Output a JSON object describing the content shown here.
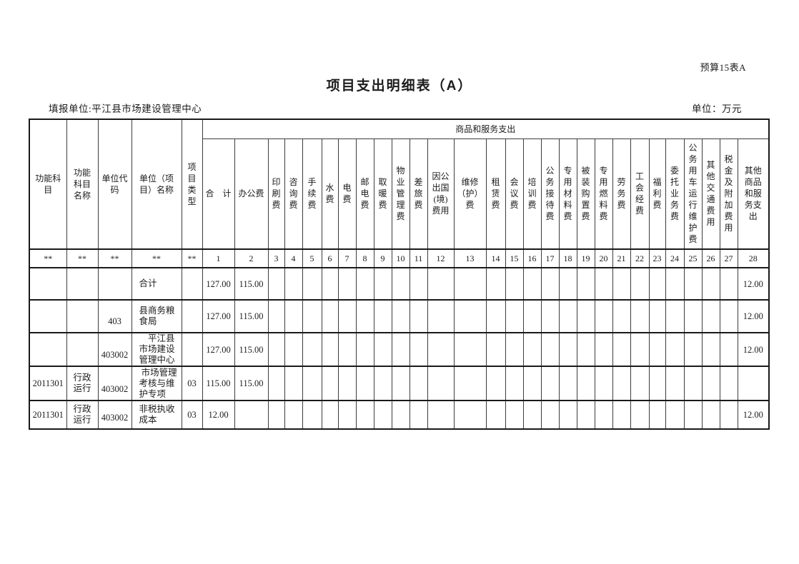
{
  "page": {
    "form_code": "预算15表A",
    "title": "项目支出明细表（A）",
    "reporting_unit": "填报单位:平江县市场建设管理中心",
    "unit_note": "单位：万元"
  },
  "table": {
    "group_header": "商品和服务支出",
    "left_headers": [
      "功能科\n目",
      "功能\n科目\n名称",
      "单位代\n码",
      "单位（项\n目）名称",
      "项\n目\n类\n型"
    ],
    "expense_headers": [
      "合　计",
      "办公费",
      "印\n刷\n费",
      "咨\n询\n费",
      "手\n续\n费",
      "水\n费",
      "电\n费",
      "邮\n电\n费",
      "取\n暖\n费",
      "物\n业\n管\n理\n费",
      "差\n旅\n费",
      "因公\n出国\n(境)\n费用",
      "维修\n（护）\n费",
      "租\n赁\n费",
      "会\n议\n费",
      "培\n训\n费",
      "公\n务\n接\n待\n费",
      "专\n用\n材\n料\n费",
      "被\n装\n购\n置\n费",
      "专\n用\n燃\n料\n费",
      "劳\n务\n费",
      "工\n会\n经\n费",
      "福\n利\n费",
      "委\n托\n业\n务\n费",
      "公\n务\n用\n车\n运\n行\n维\n护\n费",
      "其\n他\n交\n通\n费\n用",
      "税\n金\n及\n附\n加\n费\n用",
      "其他\n商品\n和服\n务支\n出"
    ],
    "index_row": [
      "**",
      "**",
      "**",
      "**",
      "**",
      "1",
      "2",
      "3",
      "4",
      "5",
      "6",
      "7",
      "8",
      "9",
      "10",
      "11",
      "12",
      "13",
      "14",
      "15",
      "16",
      "17",
      "18",
      "19",
      "20",
      "21",
      "22",
      "23",
      "24",
      "25",
      "26",
      "27",
      "28"
    ],
    "rows": [
      [
        "",
        "",
        "",
        "合计",
        "",
        "127.00",
        "115.00",
        "",
        "",
        "",
        "",
        "",
        "",
        "",
        "",
        "",
        "",
        "",
        "",
        "",
        "",
        "",
        "",
        "",
        "",
        "",
        "",
        "",
        "",
        "",
        "",
        "",
        "12.00"
      ],
      [
        "",
        "",
        "403",
        "县商务粮\n食局",
        "",
        "127.00",
        "115.00",
        "",
        "",
        "",
        "",
        "",
        "",
        "",
        "",
        "",
        "",
        "",
        "",
        "",
        "",
        "",
        "",
        "",
        "",
        "",
        "",
        "",
        "",
        "",
        "",
        "",
        "12.00"
      ],
      [
        "",
        "",
        "403002",
        "　平江县\n市场建设\n管理中心",
        "",
        "127.00",
        "115.00",
        "",
        "",
        "",
        "",
        "",
        "",
        "",
        "",
        "",
        "",
        "",
        "",
        "",
        "",
        "",
        "",
        "",
        "",
        "",
        "",
        "",
        "",
        "",
        "",
        "",
        "12.00"
      ],
      [
        "2011301",
        "行政\n运行",
        "403002",
        " 市场管理\n考核与维\n护专项",
        "03",
        "115.00",
        "115.00",
        "",
        "",
        "",
        "",
        "",
        "",
        "",
        "",
        "",
        "",
        "",
        "",
        "",
        "",
        "",
        "",
        "",
        "",
        "",
        "",
        "",
        "",
        "",
        "",
        "",
        ""
      ],
      [
        "2011301",
        "行政\n运行",
        "403002",
        "非税执收\n成本",
        "03",
        "12.00",
        "",
        "",
        "",
        "",
        "",
        "",
        "",
        "",
        "",
        "",
        "",
        "",
        "",
        "",
        "",
        "",
        "",
        "",
        "",
        "",
        "",
        "",
        "",
        "",
        "",
        "",
        "12.00"
      ]
    ]
  }
}
